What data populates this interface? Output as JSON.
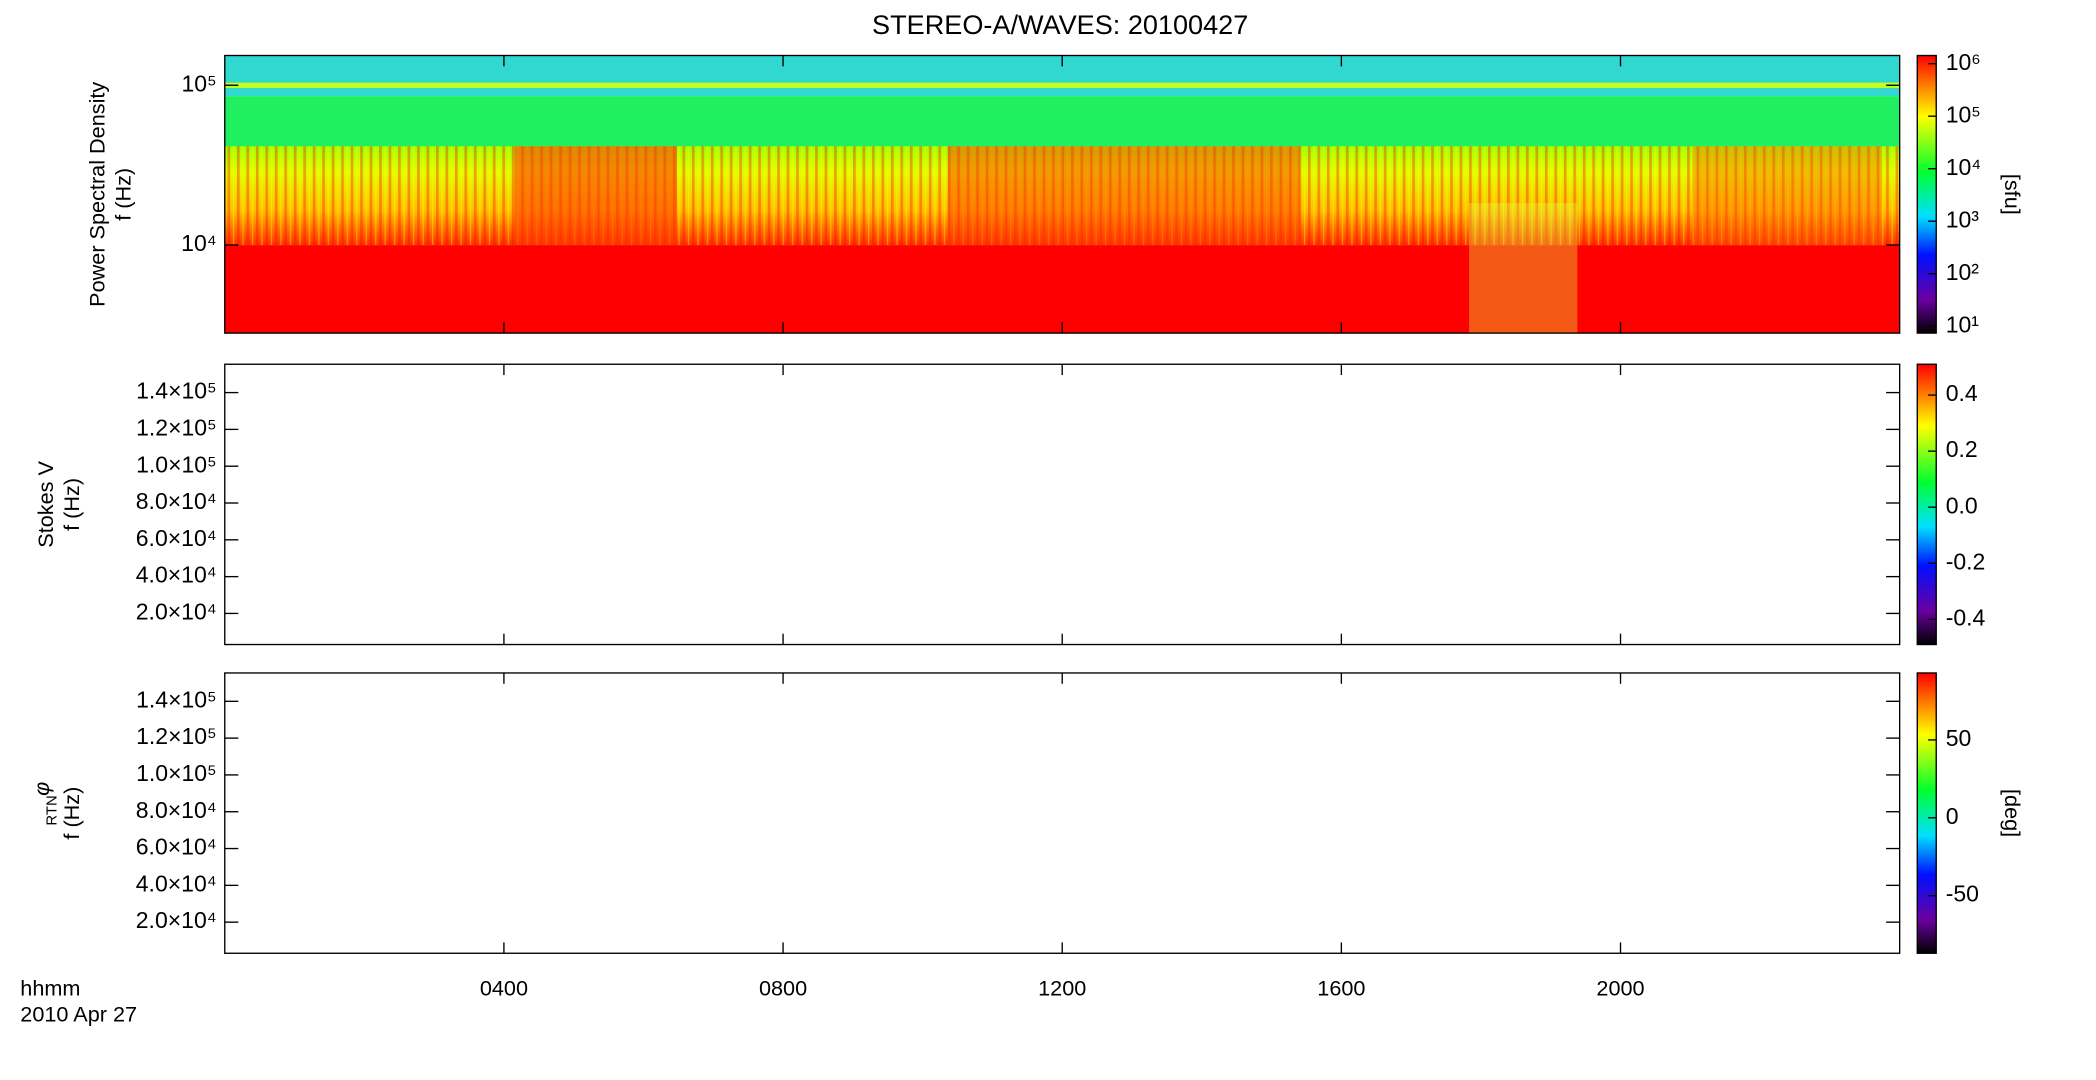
{
  "title": "STEREO-A/WAVES: 20100427",
  "time_axis": {
    "label": "hhmm",
    "date": "2010 Apr 27",
    "xlim": [
      0,
      2400
    ],
    "xticks": [
      {
        "value": 400,
        "label": "0400"
      },
      {
        "value": 800,
        "label": "0800"
      },
      1200,
      1600,
      2000
    ]
  },
  "chart_data": [
    {
      "type": "spectrogram",
      "ylabel": [
        "Power Spectral Density",
        "f (Hz)"
      ],
      "log": true,
      "ylim": [
        2810,
        153500
      ],
      "yticks": [
        {
          "value": 10000,
          "label": "10⁴"
        },
        {
          "value": 100000,
          "label": "10⁵"
        }
      ],
      "colorbar": {
        "log": true,
        "lim": [
          7.4,
          1430000
        ],
        "label": "[sfu]",
        "ticks": [
          {
            "value": 10,
            "label": "10¹"
          },
          {
            "value": 100,
            "label": "10²"
          },
          {
            "value": 1000,
            "label": "10³"
          },
          {
            "value": 10000,
            "label": "10⁴"
          },
          {
            "value": 100000,
            "label": "10⁵"
          },
          {
            "value": 1000000,
            "label": "10⁶"
          }
        ]
      }
    },
    {
      "type": "spectrogram",
      "ylabel": [
        "Stokes V",
        "f (Hz)"
      ],
      "log": false,
      "ylim": [
        3100,
        155400
      ],
      "yticks": [
        {
          "value": 20000,
          "label": "2.0×10⁴"
        },
        {
          "value": 40000,
          "label": "4.0×10⁴"
        },
        {
          "value": 60000,
          "label": "6.0×10⁴"
        },
        {
          "value": 80000,
          "label": "8.0×10⁴"
        },
        {
          "value": 100000,
          "label": "1.0×10⁵"
        },
        {
          "value": 120000,
          "label": "1.2×10⁵"
        },
        {
          "value": 140000,
          "label": "1.4×10⁵"
        }
      ],
      "colorbar": {
        "log": false,
        "lim": [
          -0.49,
          0.51
        ],
        "ticks": [
          -0.4,
          -0.2,
          {
            "value": 0,
            "label": "0.0"
          },
          0.2,
          0.4
        ]
      }
    },
    {
      "type": "spectrogram",
      "ylabel": [
        "φ",
        "RTN",
        "f (Hz)"
      ],
      "log": false,
      "ylim": [
        3100,
        155400
      ],
      "yticks": [
        {
          "value": 20000,
          "label": "2.0×10⁴"
        },
        {
          "value": 40000,
          "label": "4.0×10⁴"
        },
        {
          "value": 60000,
          "label": "6.0×10⁴"
        },
        {
          "value": 80000,
          "label": "8.0×10⁴"
        },
        {
          "value": 100000,
          "label": "1.0×10⁵"
        },
        {
          "value": 120000,
          "label": "1.2×10⁵"
        },
        {
          "value": 140000,
          "label": "1.4×10⁵"
        }
      ],
      "colorbar": {
        "log": false,
        "lim": [
          -87,
          93
        ],
        "label": "[deg]",
        "ticks": [
          -50,
          0,
          50
        ]
      }
    }
  ]
}
